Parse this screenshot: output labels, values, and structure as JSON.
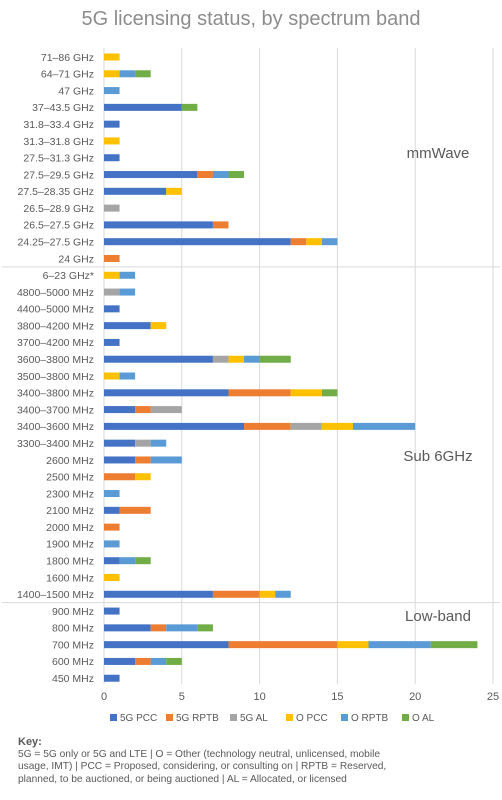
{
  "chart_data": {
    "type": "bar",
    "orientation": "horizontal",
    "stacked": true,
    "title": "5G licensing status, by spectrum band",
    "xlim": [
      0,
      25
    ],
    "xticks": [
      0,
      5,
      10,
      15,
      20,
      25
    ],
    "grid": true,
    "legend_position": "bottom",
    "categories": [
      "71–86 GHz",
      "64–71 GHz",
      "47 GHz",
      "37–43.5 GHz",
      "31.8–33.4 GHz",
      "31.3–31.8 GHz",
      "27.5–31.3 GHz",
      "27.5–29.5 GHz",
      "27.5–28.35 GHz",
      "26.5–28.9 GHz",
      "26.5–27.5 GHz",
      "24.25–27.5 GHz",
      "24 GHz",
      "6–23 GHz*",
      "4800–5000 MHz",
      "4400–5000 MHz",
      "3800–4200 MHz",
      "3700–4200 MHz",
      "3600–3800 MHz",
      "3500–3800 MHz",
      "3400–3800 MHz",
      "3400–3700 MHz",
      "3400–3600 MHz",
      "3300–3400 MHz",
      "2600 MHz",
      "2500 MHz",
      "2300 MHz",
      "2100 MHz",
      "2000 MHz",
      "1900 MHz",
      "1800 MHz",
      "1600 MHz",
      "1400–1500 MHz",
      "900 MHz",
      "800 MHz",
      "700 MHz",
      "600 MHz",
      "450 MHz"
    ],
    "series": [
      {
        "name": "5G PCC",
        "color": "#4472c4",
        "values": [
          0,
          0,
          0,
          5,
          1,
          0,
          1,
          6,
          4,
          0,
          7,
          12,
          0,
          0,
          0,
          1,
          3,
          1,
          7,
          0,
          8,
          2,
          9,
          2,
          2,
          0,
          0,
          1,
          0,
          0,
          1,
          0,
          7,
          1,
          3,
          8,
          2,
          1
        ]
      },
      {
        "name": "5G RPTB",
        "color": "#ed7d31",
        "values": [
          0,
          0,
          0,
          0,
          0,
          0,
          0,
          1,
          0,
          0,
          1,
          1,
          1,
          0,
          0,
          0,
          0,
          0,
          0,
          0,
          4,
          1,
          3,
          0,
          1,
          2,
          0,
          2,
          1,
          0,
          0,
          0,
          3,
          0,
          1,
          7,
          1,
          0
        ]
      },
      {
        "name": "5G AL",
        "color": "#a5a5a5",
        "values": [
          0,
          0,
          0,
          0,
          0,
          0,
          0,
          0,
          0,
          1,
          0,
          0,
          0,
          0,
          1,
          0,
          0,
          0,
          1,
          0,
          0,
          2,
          2,
          1,
          0,
          0,
          0,
          0,
          0,
          0,
          0,
          0,
          0,
          0,
          0,
          0,
          0,
          0
        ]
      },
      {
        "name": "O PCC",
        "color": "#ffc000",
        "values": [
          1,
          1,
          0,
          0,
          0,
          1,
          0,
          0,
          1,
          0,
          0,
          1,
          0,
          1,
          0,
          0,
          1,
          0,
          1,
          1,
          2,
          0,
          2,
          0,
          0,
          1,
          0,
          0,
          0,
          0,
          0,
          1,
          1,
          0,
          0,
          2,
          0,
          0
        ]
      },
      {
        "name": "O RPTB",
        "color": "#5b9bd5",
        "values": [
          0,
          1,
          1,
          0,
          0,
          0,
          0,
          1,
          0,
          0,
          0,
          1,
          0,
          1,
          1,
          0,
          0,
          0,
          1,
          1,
          0,
          0,
          4,
          1,
          2,
          0,
          1,
          0,
          0,
          1,
          1,
          0,
          1,
          0,
          2,
          4,
          1,
          0
        ]
      },
      {
        "name": "O AL",
        "color": "#70ad47",
        "values": [
          0,
          1,
          0,
          1,
          0,
          0,
          0,
          1,
          0,
          0,
          0,
          0,
          0,
          0,
          0,
          0,
          0,
          0,
          2,
          0,
          1,
          0,
          0,
          0,
          0,
          0,
          0,
          0,
          0,
          0,
          1,
          0,
          0,
          0,
          1,
          3,
          1,
          0
        ]
      }
    ],
    "groups": [
      {
        "label": "mmWave",
        "first": 0,
        "last": 12
      },
      {
        "label": "Sub 6GHz",
        "first": 13,
        "last": 32
      },
      {
        "label": "Low-band",
        "first": 33,
        "last": 37
      }
    ]
  },
  "key": {
    "heading": "Key:",
    "line1": "5G = 5G only or 5G and LTE | O = Other (technology neutral, unlicensed, mobile",
    "line2": "usage, IMT) | PCC = Proposed, considering, or consulting on | RPTB = Reserved,",
    "line3": "planned, to be auctioned, or being auctioned | AL = Allocated, or licensed"
  }
}
